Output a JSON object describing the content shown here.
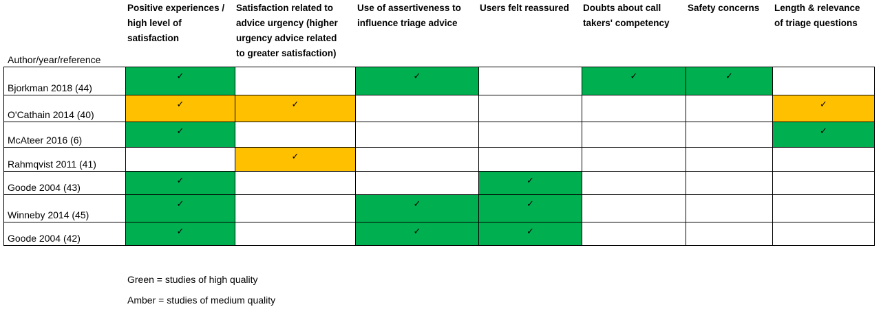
{
  "colors": {
    "green": "#00b050",
    "amber": "#ffc000",
    "none": "#ffffff"
  },
  "check_glyph": "✓",
  "author_heading": "Author/year/reference",
  "columns": [
    {
      "lines": [
        "Positive experiences /",
        "high level of",
        "satisfaction"
      ]
    },
    {
      "lines": [
        "Satisfaction related to",
        "advice urgency (higher",
        "urgency advice related",
        "to greater satisfaction)"
      ]
    },
    {
      "lines": [
        "Use of assertiveness to",
        "influence triage advice"
      ]
    },
    {
      "lines": [
        "Users felt reassured"
      ]
    },
    {
      "lines": [
        "Doubts about call",
        "takers' competency"
      ]
    },
    {
      "lines": [
        "Safety concerns"
      ]
    },
    {
      "lines": [
        "Length & relevance",
        "of triage questions"
      ]
    }
  ],
  "rows": [
    {
      "author": "Bjorkman 2018 (44)",
      "cells": [
        "green",
        "none",
        "green",
        "none",
        "green",
        "green",
        "none"
      ]
    },
    {
      "author": "O'Cathain 2014 (40)",
      "cells": [
        "amber",
        "amber",
        "none",
        "none",
        "none",
        "none",
        "amber"
      ]
    },
    {
      "author": "McAteer 2016 (6)",
      "cells": [
        "green",
        "none",
        "none",
        "none",
        "none",
        "none",
        "green"
      ]
    },
    {
      "author": "Rahmqvist 2011 (41)",
      "cells": [
        "none",
        "amber",
        "none",
        "none",
        "none",
        "none",
        "none"
      ]
    },
    {
      "author": "Goode 2004 (43)",
      "cells": [
        "green",
        "none",
        "none",
        "green",
        "none",
        "none",
        "none"
      ]
    },
    {
      "author": "Winneby 2014 (45)",
      "cells": [
        "green",
        "none",
        "green",
        "green",
        "none",
        "none",
        "none"
      ]
    },
    {
      "author": "Goode 2004 (42)",
      "cells": [
        "green",
        "none",
        "green",
        "green",
        "none",
        "none",
        "none"
      ]
    }
  ],
  "legend": [
    "Green = studies of high quality",
    "Amber = studies of medium quality"
  ]
}
